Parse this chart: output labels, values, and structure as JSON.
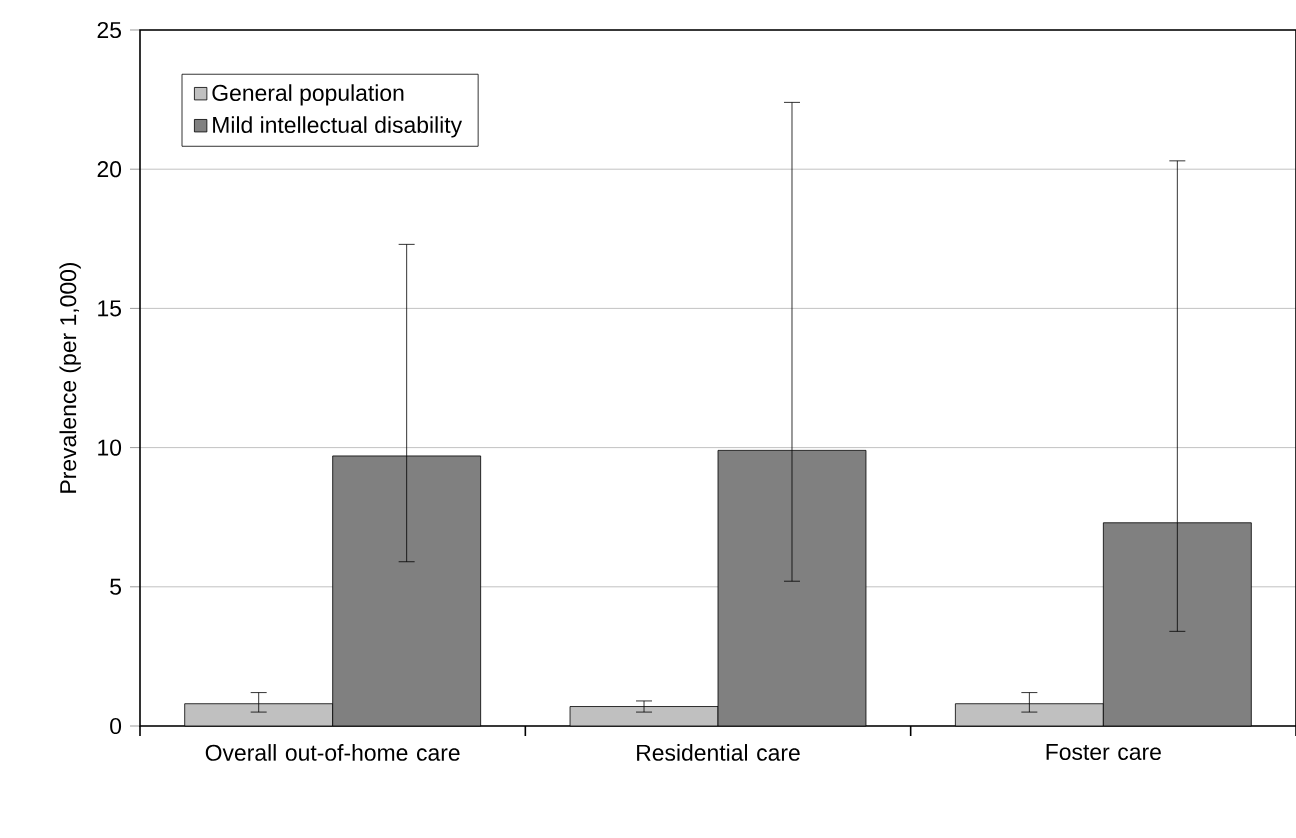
{
  "chart_data": {
    "type": "bar",
    "ylabel": "Prevalence (per 1,000)",
    "categories": [
      "Overall out-of-home care",
      "Residential care",
      "Foster care"
    ],
    "series": [
      {
        "name": "General population",
        "color": "#c0c0c0",
        "values": [
          0.8,
          0.7,
          0.8
        ],
        "errors": [
          [
            0.5,
            1.2
          ],
          [
            0.5,
            0.9
          ],
          [
            0.5,
            1.2
          ]
        ]
      },
      {
        "name": "Mild intellectual disability",
        "color": "#808080",
        "values": [
          9.7,
          9.9,
          7.3
        ],
        "errors": [
          [
            5.9,
            17.3
          ],
          [
            5.2,
            22.4
          ],
          [
            3.4,
            20.3
          ]
        ]
      }
    ],
    "ylim": [
      0,
      25
    ],
    "yticks": [
      0,
      5,
      10,
      15,
      20,
      25
    ],
    "grid": "y",
    "legend": "top left"
  }
}
